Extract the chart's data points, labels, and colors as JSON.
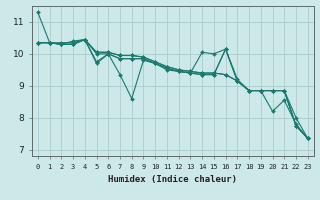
{
  "xlabel": "Humidex (Indice chaleur)",
  "background_color": "#cce8e8",
  "grid_color": "#aacccc",
  "line_color": "#1a7a6e",
  "xlim": [
    -0.5,
    23.5
  ],
  "ylim": [
    6.8,
    11.5
  ],
  "xtick_labels": [
    "0",
    "1",
    "2",
    "3",
    "4",
    "5",
    "6",
    "7",
    "8",
    "9",
    "10",
    "11",
    "12",
    "13",
    "14",
    "15",
    "16",
    "17",
    "18",
    "19",
    "20",
    "21",
    "22",
    "23"
  ],
  "ytick_labels": [
    "7",
    "8",
    "9",
    "10",
    "11"
  ],
  "series": [
    [
      11.3,
      10.35,
      10.35,
      10.35,
      10.45,
      9.75,
      10.0,
      9.35,
      8.6,
      9.8,
      9.7,
      9.5,
      9.45,
      9.4,
      10.05,
      10.0,
      10.15,
      9.2,
      8.85,
      8.85,
      8.2,
      8.55,
      7.8,
      7.35
    ],
    [
      10.35,
      10.35,
      10.3,
      10.4,
      10.45,
      9.7,
      10.0,
      9.85,
      9.85,
      9.85,
      9.7,
      9.55,
      9.45,
      9.4,
      9.35,
      9.35,
      10.15,
      9.15,
      8.85,
      8.85,
      8.85,
      8.85,
      8.0,
      7.35
    ],
    [
      10.35,
      10.35,
      10.3,
      10.3,
      10.45,
      10.0,
      10.0,
      9.85,
      9.85,
      9.85,
      9.7,
      9.55,
      9.45,
      9.4,
      9.35,
      9.35,
      10.15,
      9.15,
      8.85,
      8.85,
      8.85,
      8.85,
      7.75,
      7.35
    ],
    [
      10.35,
      10.35,
      10.3,
      10.3,
      10.45,
      10.05,
      10.05,
      9.95,
      9.95,
      9.9,
      9.75,
      9.6,
      9.5,
      9.45,
      9.4,
      9.4,
      9.35,
      9.15,
      8.85,
      8.85,
      8.85,
      8.85,
      7.75,
      7.35
    ],
    [
      10.35,
      10.35,
      10.3,
      10.3,
      10.45,
      10.05,
      10.05,
      9.95,
      9.95,
      9.9,
      9.75,
      9.6,
      9.5,
      9.45,
      9.4,
      9.4,
      9.35,
      9.15,
      8.85,
      8.85,
      8.85,
      8.85,
      7.75,
      7.35
    ]
  ]
}
